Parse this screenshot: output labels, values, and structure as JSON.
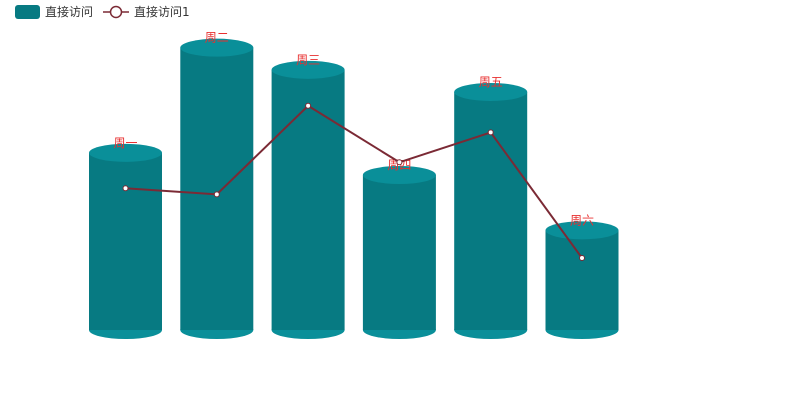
{
  "chart_data": {
    "type": "bar",
    "categories": [
      "周一",
      "周二",
      "周三",
      "周四",
      "周五",
      "周六"
    ],
    "series": [
      {
        "name": "直接访问",
        "kind": "bar",
        "color": "#077a82",
        "cap_color": "#0a8f99",
        "values": [
          320,
          510,
          470,
          280,
          430,
          180
        ]
      },
      {
        "name": "直接访问1",
        "kind": "line",
        "color": "#7b2a35",
        "values": [
          256,
          245,
          405,
          303,
          357,
          130
        ]
      }
    ],
    "ylim": [
      0,
      560
    ],
    "legend": "top-left",
    "grid": false
  }
}
